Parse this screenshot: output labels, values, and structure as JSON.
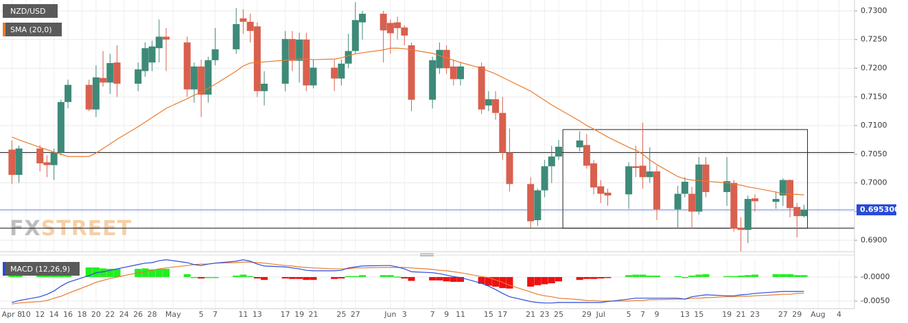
{
  "chart_data": [
    {
      "type": "candlestick",
      "x": [
        0,
        1,
        4,
        5,
        6,
        7,
        8,
        11,
        12,
        13,
        14,
        15,
        18,
        19,
        20,
        21,
        22,
        25,
        26,
        27,
        28,
        29,
        32,
        33,
        34,
        35,
        36,
        39,
        40,
        41,
        42,
        43,
        46,
        47,
        48,
        49,
        50,
        53,
        54,
        55,
        56,
        57,
        60,
        61,
        62,
        63,
        64,
        67,
        68,
        69,
        70,
        71,
        74,
        75,
        76,
        77,
        78,
        81,
        82,
        83,
        84,
        85,
        88,
        89,
        90,
        91,
        92,
        95,
        96,
        97,
        98,
        99,
        102,
        103,
        104,
        105,
        106,
        109,
        110,
        111,
        112,
        113
      ],
      "series": [
        {
          "name": "NZD/USD",
          "up_color": "#3e8a78",
          "down_color": "#d9604e",
          "open": [
            0.7058,
            0.7014,
            0.706,
            0.7036,
            0.7031,
            0.7053,
            0.7141,
            0.7171,
            0.7128,
            0.7183,
            0.7175,
            0.721,
            0.7173,
            0.7195,
            0.721,
            0.7235,
            0.7255,
            0.7245,
            0.7163,
            0.7203,
            0.7154,
            0.7214,
            0.7233,
            0.7287,
            0.7281,
            0.7273,
            0.716,
            0.7173,
            0.7251,
            0.7213,
            0.725,
            0.717,
            0.7201,
            0.7182,
            0.7208,
            0.723,
            0.728,
            0.7295,
            0.7279,
            0.728,
            0.7271,
            0.724,
            0.7145,
            0.72,
            0.7232,
            0.7203,
            0.7181,
            0.7203,
            0.7135,
            0.7146,
            0.7122,
            0.7053,
            0.6998,
            0.6935,
            0.6987,
            0.7029,
            0.7046,
            0.7062,
            0.7066,
            0.7034,
            0.6994,
            0.6983,
            0.698,
            0.7029,
            0.703,
            0.701,
            0.702,
            0.6954,
            0.6981,
            0.6981,
            0.695,
            0.7032,
            0.6984,
            0.7,
            0.6922,
            0.6918,
            0.6973,
            0.6967,
            0.6978,
            0.7005,
            0.6958,
            0.6942
          ],
          "high": [
            0.7074,
            0.7065,
            0.7066,
            0.7048,
            0.706,
            0.7145,
            0.718,
            0.718,
            0.7205,
            0.723,
            0.7225,
            0.724,
            0.721,
            0.7245,
            0.7248,
            0.7285,
            0.727,
            0.7255,
            0.721,
            0.7215,
            0.722,
            0.727,
            0.7305,
            0.7303,
            0.7295,
            0.728,
            0.7195,
            0.7265,
            0.7265,
            0.7262,
            0.7262,
            0.7215,
            0.7215,
            0.7215,
            0.726,
            0.7315,
            0.73,
            0.73,
            0.7285,
            0.729,
            0.7275,
            0.7245,
            0.722,
            0.7245,
            0.724,
            0.7215,
            0.721,
            0.721,
            0.716,
            0.716,
            0.715,
            0.7095,
            0.701,
            0.699,
            0.704,
            0.7065,
            0.7075,
            0.709,
            0.7085,
            0.704,
            0.7005,
            0.699,
            0.7036,
            0.7065,
            0.7105,
            0.7062,
            0.703,
            0.6995,
            0.701,
            0.6993,
            0.7045,
            0.7045,
            0.7045,
            0.7005,
            0.694,
            0.6978,
            0.698,
            0.6985,
            0.7008,
            0.7006,
            0.6965,
            0.6962
          ],
          "low": [
            0.6998,
            0.7,
            0.702,
            0.701,
            0.7005,
            0.7048,
            0.713,
            0.7125,
            0.7115,
            0.7168,
            0.7155,
            0.715,
            0.716,
            0.7185,
            0.7195,
            0.721,
            0.7195,
            0.715,
            0.714,
            0.7115,
            0.714,
            0.7205,
            0.7225,
            0.726,
            0.7245,
            0.715,
            0.7135,
            0.716,
            0.7195,
            0.7175,
            0.716,
            0.7165,
            0.716,
            0.717,
            0.72,
            0.7225,
            0.725,
            0.721,
            0.7225,
            0.725,
            0.724,
            0.7125,
            0.713,
            0.719,
            0.719,
            0.717,
            0.717,
            0.712,
            0.7125,
            0.711,
            0.704,
            0.6985,
            0.6922,
            0.6925,
            0.6975,
            0.7,
            0.704,
            0.7055,
            0.7025,
            0.698,
            0.6965,
            0.696,
            0.6955,
            0.701,
            0.699,
            0.7,
            0.6935,
            0.692,
            0.6975,
            0.692,
            0.6945,
            0.6975,
            0.696,
            0.6915,
            0.688,
            0.6895,
            0.695,
            0.6955,
            0.696,
            0.694,
            0.6905,
            0.694
          ],
          "close": [
            0.7014,
            0.706,
            0.7034,
            0.7031,
            0.7053,
            0.7141,
            0.7171,
            0.7128,
            0.7184,
            0.7175,
            0.7209,
            0.7173,
            0.7198,
            0.7235,
            0.7238,
            0.7255,
            0.725,
            0.7163,
            0.7203,
            0.7154,
            0.7214,
            0.7233,
            0.7277,
            0.7281,
            0.7265,
            0.716,
            0.7173,
            0.7251,
            0.7213,
            0.725,
            0.717,
            0.7201,
            0.7182,
            0.7208,
            0.723,
            0.7284,
            0.7295,
            0.7266,
            0.7261,
            0.727,
            0.7257,
            0.7145,
            0.7214,
            0.7232,
            0.72,
            0.7181,
            0.7203,
            0.7128,
            0.7146,
            0.7122,
            0.7053,
            0.6998,
            0.6933,
            0.6987,
            0.7029,
            0.7046,
            0.7063,
            0.7074,
            0.703,
            0.6992,
            0.6981,
            0.6978,
            0.7029,
            0.7026,
            0.701,
            0.702,
            0.6954,
            0.6981,
            0.7002,
            0.695,
            0.7032,
            0.6984,
            0.7003,
            0.692,
            0.6918,
            0.6972,
            0.6968,
            0.6972,
            0.7005,
            0.6956,
            0.6942,
            0.6953
          ]
        },
        {
          "name": "SMA (20,0)",
          "color": "#ea7a2c",
          "values": [
            0.708,
            0.7075,
            0.7062,
            0.7058,
            0.7054,
            0.705,
            0.7046,
            0.7046,
            0.7052,
            0.706,
            0.7068,
            0.7076,
            0.7098,
            0.7106,
            0.7114,
            0.7122,
            0.713,
            0.7147,
            0.7153,
            0.7158,
            0.7165,
            0.7172,
            0.7195,
            0.7204,
            0.7209,
            0.721,
            0.7211,
            0.7214,
            0.7215,
            0.7216,
            0.7216,
            0.7215,
            0.7216,
            0.7218,
            0.7222,
            0.7225,
            0.7227,
            0.7232,
            0.7235,
            0.7235,
            0.7234,
            0.7232,
            0.7226,
            0.7222,
            0.7218,
            0.7214,
            0.721,
            0.72,
            0.7195,
            0.719,
            0.7184,
            0.7178,
            0.716,
            0.7152,
            0.7144,
            0.7136,
            0.7129,
            0.7108,
            0.71,
            0.7094,
            0.7087,
            0.708,
            0.7062,
            0.7057,
            0.705,
            0.704,
            0.7032,
            0.7011,
            0.7007,
            0.7005,
            0.7004,
            0.7003,
            0.7,
            0.6998,
            0.6996,
            0.6993,
            0.6991,
            0.6984,
            0.6981,
            0.698,
            0.698,
            0.6979
          ]
        }
      ],
      "xlim": [
        -1.7,
        120.2
      ],
      "xticks": [
        {
          "value": 0,
          "label": "Apr 8"
        },
        {
          "value": 2,
          "label": "10"
        },
        {
          "value": 4,
          "label": "12"
        },
        {
          "value": 6,
          "label": "14"
        },
        {
          "value": 8,
          "label": "16"
        },
        {
          "value": 10,
          "label": "18"
        },
        {
          "value": 12,
          "label": "20"
        },
        {
          "value": 14,
          "label": "22"
        },
        {
          "value": 16,
          "label": "24"
        },
        {
          "value": 18,
          "label": "26"
        },
        {
          "value": 20,
          "label": "28"
        },
        {
          "value": 23,
          "label": "May"
        },
        {
          "value": 27,
          "label": "5"
        },
        {
          "value": 29,
          "label": "7"
        },
        {
          "value": 33,
          "label": "11"
        },
        {
          "value": 35,
          "label": "13"
        },
        {
          "value": 39,
          "label": "17"
        },
        {
          "value": 41,
          "label": "19"
        },
        {
          "value": 43,
          "label": "21"
        },
        {
          "value": 47,
          "label": "25"
        },
        {
          "value": 49,
          "label": "27"
        },
        {
          "value": 54,
          "label": "Jun"
        },
        {
          "value": 56,
          "label": "3"
        },
        {
          "value": 60,
          "label": "7"
        },
        {
          "value": 62,
          "label": "9"
        },
        {
          "value": 64,
          "label": "11"
        },
        {
          "value": 68,
          "label": "15"
        },
        {
          "value": 70,
          "label": "17"
        },
        {
          "value": 74,
          "label": "21"
        },
        {
          "value": 76,
          "label": "23"
        },
        {
          "value": 78,
          "label": "25"
        },
        {
          "value": 82,
          "label": "29"
        },
        {
          "value": 84,
          "label": "Jul"
        },
        {
          "value": 88,
          "label": "5"
        },
        {
          "value": 90,
          "label": "7"
        },
        {
          "value": 92,
          "label": "9"
        },
        {
          "value": 96,
          "label": "13"
        },
        {
          "value": 98,
          "label": "15"
        },
        {
          "value": 102,
          "label": "19"
        },
        {
          "value": 104,
          "label": "21"
        },
        {
          "value": 106,
          "label": "23"
        },
        {
          "value": 110,
          "label": "27"
        },
        {
          "value": 112,
          "label": "29"
        },
        {
          "value": 115,
          "label": "Aug"
        },
        {
          "value": 118,
          "label": "4"
        }
      ],
      "ylim": [
        0.688,
        0.7319
      ],
      "yticks": [
        {
          "value": 0.69,
          "label": "0.6900"
        },
        {
          "value": 0.695,
          "label": "0.6950"
        },
        {
          "value": 0.7,
          "label": "0.7000"
        },
        {
          "value": 0.705,
          "label": "0.7050"
        },
        {
          "value": 0.71,
          "label": "0.7100"
        },
        {
          "value": 0.715,
          "label": "0.7150"
        },
        {
          "value": 0.72,
          "label": "0.7200"
        },
        {
          "value": 0.725,
          "label": "0.7250"
        },
        {
          "value": 0.73,
          "label": "0.7300"
        }
      ],
      "grid": true,
      "hlines": [
        0.7053,
        0.6921
      ],
      "box": {
        "xlim": [
          78.6,
          113.5
        ],
        "ylim": [
          0.6921,
          0.7093
        ]
      },
      "last_price": {
        "value": 0.6953,
        "label": "0.695300",
        "color": "#2a4bd7"
      },
      "watermark": [
        "FX",
        "STREET"
      ]
    },
    {
      "type": "macd",
      "title": "MACD (12,26,9)",
      "series": [
        {
          "color": "#2a4bd7",
          "values": [
            -0.0053,
            -0.0049,
            -0.0041,
            -0.0036,
            -0.0029,
            -0.0019,
            -0.0011,
            0.0003,
            0.0009,
            0.0011,
            0.0014,
            0.0017,
            0.0026,
            0.0029,
            0.003,
            0.0034,
            0.0036,
            0.003,
            0.0026,
            0.0024,
            0.0027,
            0.0029,
            0.0033,
            0.0036,
            0.0033,
            0.0027,
            0.0023,
            0.0021,
            0.0019,
            0.0017,
            0.0014,
            0.0013,
            0.0013,
            0.0014,
            0.0019,
            0.0021,
            0.0023,
            0.0024,
            0.0024,
            0.0021,
            0.0017,
            0.0011,
            0.0009,
            0.0007,
            0.0004,
            0.0001,
            -0.0001,
            -0.0013,
            -0.0019,
            -0.0026,
            -0.0034,
            -0.0041,
            -0.0051,
            -0.0053,
            -0.0054,
            -0.0054,
            -0.0053,
            -0.0053,
            -0.0053,
            -0.0053,
            -0.0053,
            -0.0051,
            -0.0046,
            -0.0044,
            -0.0044,
            -0.0044,
            -0.0044,
            -0.0044,
            -0.0046,
            -0.0041,
            -0.0039,
            -0.0037,
            -0.0039,
            -0.0039,
            -0.0037,
            -0.0036,
            -0.0034,
            -0.0031,
            -0.003,
            -0.003,
            -0.003,
            -0.003
          ]
        },
        {
          "color": "#ea7a2c",
          "values": [
            -0.0056,
            -0.0054,
            -0.0051,
            -0.0049,
            -0.0044,
            -0.004,
            -0.0034,
            -0.0017,
            -0.0011,
            -0.0007,
            -0.0003,
            0.0,
            0.0009,
            0.0011,
            0.0014,
            0.0017,
            0.0019,
            0.0024,
            0.0026,
            0.0027,
            0.0027,
            0.0029,
            0.003,
            0.0031,
            0.0031,
            0.003,
            0.0029,
            0.0024,
            0.0023,
            0.0021,
            0.002,
            0.0019,
            0.0017,
            0.0017,
            0.0017,
            0.0019,
            0.0019,
            0.002,
            0.002,
            0.002,
            0.002,
            0.0019,
            0.0016,
            0.0014,
            0.0013,
            0.0011,
            0.0009,
            0.0001,
            -0.0001,
            -0.0006,
            -0.0011,
            -0.0017,
            -0.0031,
            -0.0036,
            -0.0039,
            -0.0041,
            -0.0044,
            -0.0047,
            -0.0049,
            -0.0049,
            -0.005,
            -0.005,
            -0.005,
            -0.0049,
            -0.0049,
            -0.0047,
            -0.0047,
            -0.0046,
            -0.0046,
            -0.0044,
            -0.0044,
            -0.0043,
            -0.0041,
            -0.0041,
            -0.004,
            -0.004,
            -0.0039,
            -0.0037,
            -0.0036,
            -0.0036,
            -0.0034,
            -0.0034
          ]
        },
        {
          "up_color": "#22ee22",
          "down_color": "#ee1111",
          "values": [
            0.0003,
            0.0005,
            0.001,
            0.0013,
            0.0015,
            0.0021,
            0.0023,
            0.002,
            0.002,
            0.0018,
            0.0017,
            0.0017,
            0.0017,
            0.0018,
            0.0016,
            0.0017,
            0.0017,
            0.0006,
            0.0,
            -0.0003,
            0.0,
            0.0,
            0.0003,
            0.0005,
            0.0002,
            -0.0003,
            -0.0006,
            -0.0003,
            -0.0004,
            -0.0004,
            -0.0006,
            -0.0006,
            -0.0004,
            -0.0003,
            0.0002,
            0.0002,
            0.0004,
            0.0004,
            0.0004,
            0.0001,
            -0.0003,
            -0.0008,
            -0.0007,
            -0.0007,
            -0.0009,
            -0.001,
            -0.001,
            -0.0014,
            -0.0018,
            -0.002,
            -0.0023,
            -0.0024,
            -0.002,
            -0.0017,
            -0.0015,
            -0.0013,
            -0.0009,
            -0.0006,
            -0.0004,
            -0.0004,
            -0.0003,
            -0.0001,
            0.0004,
            0.0005,
            0.0005,
            0.0003,
            0.0003,
            0.0002,
            0.0,
            0.0003,
            0.0005,
            0.0006,
            0.0002,
            0.0002,
            0.0003,
            0.0004,
            0.0005,
            0.0006,
            0.0006,
            0.0006,
            0.0004,
            0.0004
          ]
        }
      ],
      "ylim": [
        -0.00657,
        0.00371
      ],
      "yticks": [
        {
          "value": 0,
          "label": "-0.0000"
        },
        {
          "value": -0.005,
          "label": "-0.0050"
        }
      ],
      "grid": true
    }
  ]
}
